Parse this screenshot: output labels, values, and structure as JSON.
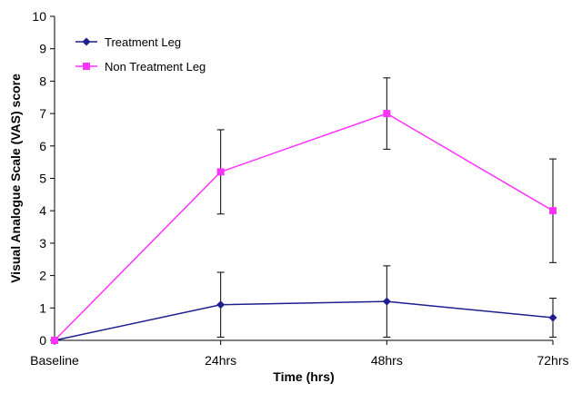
{
  "chart_data": {
    "type": "line",
    "title": "",
    "xlabel": "Time (hrs)",
    "ylabel": "Visual Analogue Scale (VAS) score",
    "categories": [
      "Baseline",
      "24hrs",
      "48hrs",
      "72hrs"
    ],
    "ylim": [
      0,
      10
    ],
    "yticks": [
      "0",
      "1",
      "2",
      "3",
      "4",
      "5",
      "6",
      "7",
      "8",
      "9",
      "10"
    ],
    "grid": false,
    "legend_position": "top-left",
    "series": [
      {
        "name": "Treatment Leg",
        "color": "#1f1f8f",
        "marker": "diamond",
        "values": [
          0,
          1.1,
          1.2,
          0.7
        ],
        "error_low": [
          0,
          0.1,
          0.1,
          0.1
        ],
        "error_high": [
          0,
          2.1,
          2.3,
          1.3
        ]
      },
      {
        "name": "Non Treatment Leg",
        "color": "#ff33ff",
        "marker": "square",
        "values": [
          0,
          5.2,
          7.0,
          4.0
        ],
        "error_low": [
          0,
          3.9,
          5.9,
          2.4
        ],
        "error_high": [
          0,
          6.5,
          8.1,
          5.6
        ]
      }
    ]
  }
}
